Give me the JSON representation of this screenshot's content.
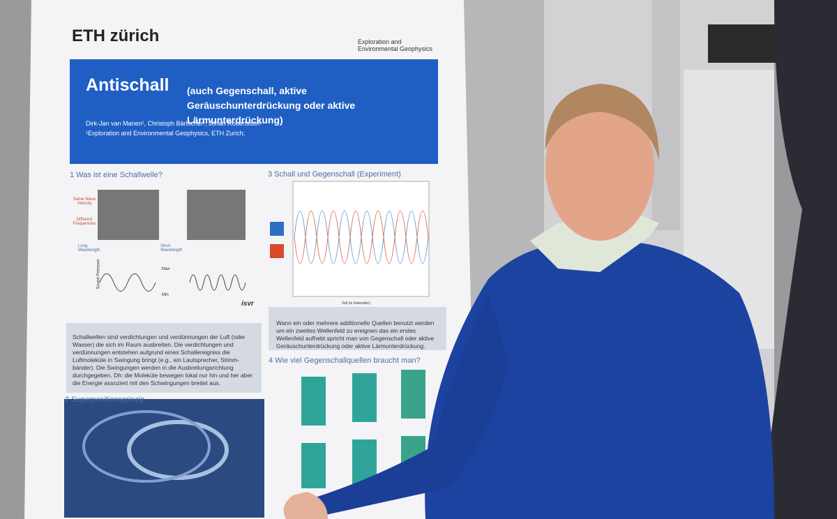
{
  "poster": {
    "logo": "ETH zürich",
    "department": "Exploration and Environmental Geophysics",
    "title": "Antischall",
    "subtitle": "(auch Gegenschall, aktive Geräuschunterdrückung oder aktive Lärmunterdrückung)",
    "authors": "Dirk-Jan van Manen¹, Christoph Bärlocher¹, Johan Robertsson¹",
    "affiliation": "¹Exploration and Environmental Geophysics, ETH Zurich;",
    "sections": [
      {
        "heading": "1 Was ist eine Schallwelle?",
        "labels": [
          "Same Wave Velocity",
          "Different Frequencies",
          "Long Wavelength",
          "Short Wavelength",
          "Max",
          "Min",
          "Sound Pressure",
          "isvr"
        ],
        "text": "Schallwellen sind verdichtungen und verdünnungen der Luft (oder Wasser) die sich im Raum ausbreiten. Die verdichtungen und verdünnungen entstehen aufgrund eines Schallereigniss die Luftmoleküle in Swingung bringt (e.g., ein Lautsprecher, Stimm-bänder). Die Swingungen werden in die Ausbreitungsrichtung durchgegeben. Dh: die Moleküle bewegen lokal nur hin und her aber die Energie assoziert mit den Schwingungen breitet aus."
      },
      {
        "heading": "2 Superpositionsprinzip"
      },
      {
        "heading": "3 Schall und Gegenschall (Experiment)",
        "xlabel": "Zeit (in Sekunden)",
        "text": "Wann ein oder mehrere additionelle Quellen benutzt werden um ein zweites Wellenfeld zu ereignen das ein erstes Wellenfeld aufhebt spricht man von Gegenschall oder aktive Geräuschunterdrückung oder aktive Lärmunterdrückung."
      },
      {
        "heading": "4 Wie viel Gegenschallquellen braucht man?"
      }
    ]
  }
}
